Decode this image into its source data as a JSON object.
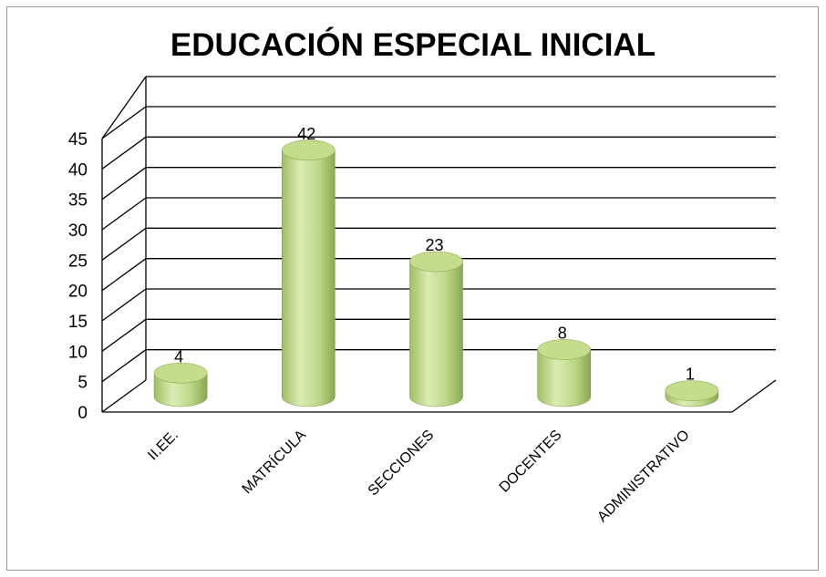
{
  "chart_data": {
    "type": "bar",
    "title": "EDUCACIÓN ESPECIAL INICIAL",
    "categories": [
      "II.EE.",
      "MATRÍCULA",
      "SECCIONES",
      "DOCENTES",
      "ADMINISTRATIVO"
    ],
    "values": [
      4,
      42,
      23,
      8,
      1
    ],
    "ylim": [
      0,
      45
    ],
    "yticks": [
      0,
      5,
      10,
      15,
      20,
      25,
      30,
      35,
      40,
      45
    ],
    "grid": true,
    "three_d": true,
    "bar_shape": "cylinder",
    "data_labels": true,
    "legend": "none"
  },
  "colors": {
    "bar_light": "#d8e9ae",
    "bar_mid": "#b2cf78",
    "bar_dark": "#8fae53",
    "bar_top": "#c4dc8c",
    "grid": "#000000"
  }
}
